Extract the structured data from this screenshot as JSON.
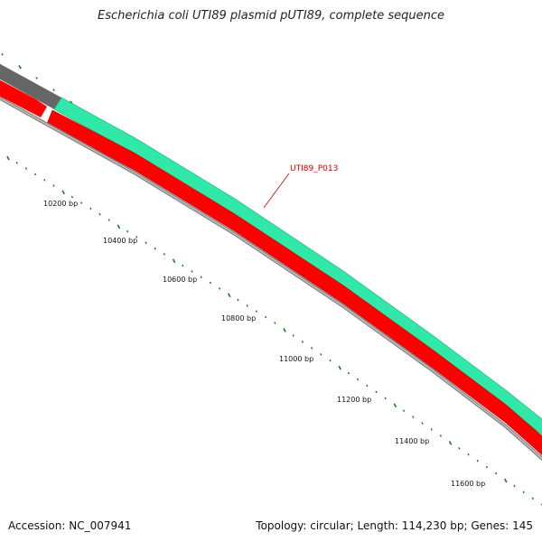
{
  "title": "Escherichia coli UTI89 plasmid pUTI89, complete sequence",
  "footer": {
    "accession": "Accession: NC_007941",
    "summary": "Topology: circular; Length: 114,230 bp; Genes: 145"
  },
  "colors": {
    "outer_gene": "#30e8a8",
    "outer_gene_prev": "#666666",
    "inner_gene": "#ff0000",
    "backbone": "#8a8a8a",
    "ticks": "#1a7a1a",
    "label_line": "#cc0000"
  },
  "feature_label": "UTI89_P013",
  "tick_labels": [
    "10200 bp",
    "10400 bp",
    "10600 bp",
    "10800 bp",
    "11000 bp",
    "11200 bp",
    "11400 bp",
    "11600 bp"
  ]
}
